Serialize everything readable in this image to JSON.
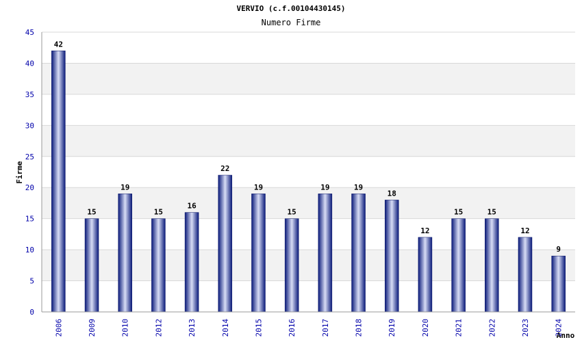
{
  "chart_data": {
    "type": "bar",
    "title": "VERVIO (c.f.00104430145)",
    "subtitle": "Numero Firme",
    "xlabel": "Anno",
    "ylabel": "Firme",
    "ylim": [
      0,
      45
    ],
    "yticks": [
      0,
      5,
      10,
      15,
      20,
      25,
      30,
      35,
      40,
      45
    ],
    "grid": true,
    "categories": [
      "2006",
      "2009",
      "2010",
      "2012",
      "2013",
      "2014",
      "2015",
      "2016",
      "2017",
      "2018",
      "2019",
      "2020",
      "2021",
      "2022",
      "2023",
      "2024"
    ],
    "values": [
      42,
      15,
      19,
      15,
      16,
      22,
      19,
      15,
      19,
      19,
      18,
      12,
      15,
      15,
      12,
      9
    ],
    "colors": {
      "bar_dark": "#0a1a7a",
      "bar_light": "#d8ddf5",
      "tick_text": "#0000aa",
      "band": "#f2f2f2",
      "gridline": "#d8d8d8"
    }
  }
}
